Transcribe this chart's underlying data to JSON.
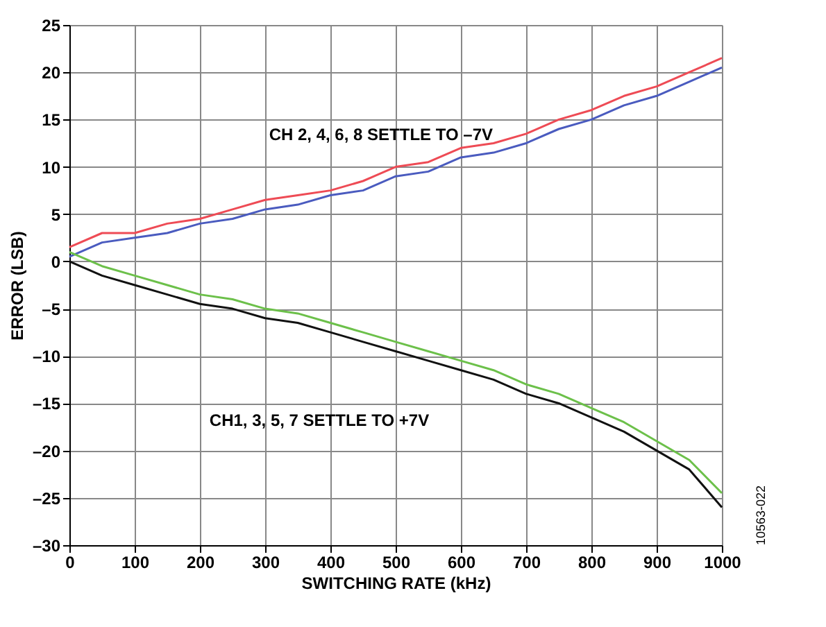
{
  "chart_data": {
    "type": "line",
    "xlabel": "SWITCHING RATE (kHz)",
    "ylabel": "ERROR (LSB)",
    "x": [
      0,
      50,
      100,
      150,
      200,
      250,
      300,
      350,
      400,
      450,
      500,
      550,
      600,
      650,
      700,
      750,
      800,
      850,
      900,
      950,
      1000
    ],
    "series": [
      {
        "color": "#4a5bbf",
        "values": [
          0.5,
          2,
          2.5,
          3,
          4,
          4.5,
          5.5,
          6,
          7,
          7.5,
          9,
          9.5,
          11,
          11.5,
          12.5,
          14,
          15,
          16.5,
          17.5,
          19,
          20.5
        ]
      },
      {
        "color": "#ee4b55",
        "values": [
          1.5,
          3,
          3,
          4,
          4.5,
          5.5,
          6.5,
          7,
          7.5,
          8.5,
          10,
          10.5,
          12,
          12.5,
          13.5,
          15,
          16,
          17.5,
          18.5,
          20,
          21.5
        ]
      },
      {
        "color": "#111111",
        "values": [
          0,
          -1.5,
          -2.5,
          -3.5,
          -4.5,
          -5,
          -6,
          -6.5,
          -7.5,
          -8.5,
          -9.5,
          -10.5,
          -11.5,
          -12.5,
          -14,
          -15,
          -16.5,
          -18,
          -20,
          -22,
          -26
        ]
      },
      {
        "color": "#6cc04a",
        "values": [
          1,
          -0.5,
          -1.5,
          -2.5,
          -3.5,
          -4,
          -5,
          -5.5,
          -6.5,
          -7.5,
          -8.5,
          -9.5,
          -10.5,
          -11.5,
          -13,
          -14,
          -15.5,
          -17,
          -19,
          -21,
          -24.5
        ]
      }
    ],
    "xlim": [
      0,
      1000
    ],
    "xticks": [
      0,
      100,
      200,
      300,
      400,
      500,
      600,
      700,
      800,
      900,
      1000
    ],
    "ylim": [
      -30,
      25
    ],
    "yticks": [
      {
        "value": -30,
        "label": "–30"
      },
      {
        "value": -25,
        "label": "–25"
      },
      {
        "value": -20,
        "label": "–20"
      },
      {
        "value": -15,
        "label": "–15"
      },
      {
        "value": -10,
        "label": "–10"
      },
      {
        "value": -5,
        "label": "–5"
      },
      0,
      5,
      10,
      15,
      20,
      25
    ],
    "grid": true,
    "marker": "none",
    "line_style": "solid",
    "annotations": [
      {
        "text": "CH 2, 4, 6, 8 SETTLE TO –7V",
        "x": 503,
        "y": 9.3
      },
      "CH1, 3, 5, 7 SETTLE TO +7V",
      "10563-022"
    ]
  }
}
